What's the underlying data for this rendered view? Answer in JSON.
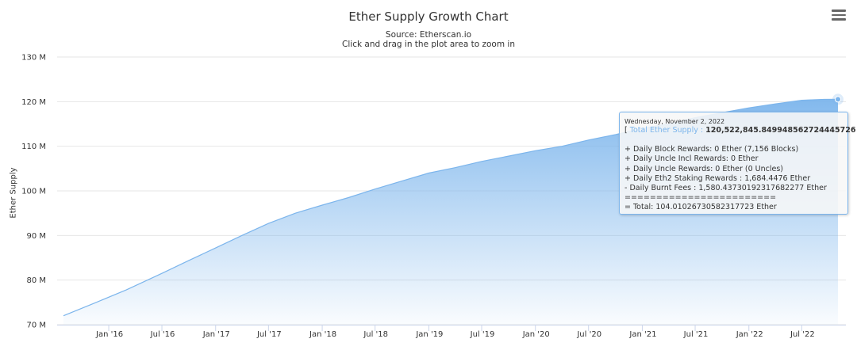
{
  "chart_data": {
    "type": "area",
    "title": "Ether Supply Growth Chart",
    "subtitle": "Source: Etherscan.io",
    "subtitle_hint": "Click and drag in the plot area to zoom in",
    "ylabel": "Ether Supply",
    "xlabel": "",
    "ylim": [
      70,
      130
    ],
    "y_ticks": [
      {
        "value": 70,
        "label": "70 M"
      },
      {
        "value": 80,
        "label": "80 M"
      },
      {
        "value": 90,
        "label": "90 M"
      },
      {
        "value": 100,
        "label": "100 M"
      },
      {
        "value": 110,
        "label": "110 M"
      },
      {
        "value": 120,
        "label": "120 M"
      },
      {
        "value": 130,
        "label": "130 M"
      }
    ],
    "x_range": [
      "2015-07-30",
      "2022-11-02"
    ],
    "x_ticks": [
      {
        "date": "2016-01-01",
        "label": "Jan '16"
      },
      {
        "date": "2016-07-01",
        "label": "Jul '16"
      },
      {
        "date": "2017-01-01",
        "label": "Jan '17"
      },
      {
        "date": "2017-07-01",
        "label": "Jul '17"
      },
      {
        "date": "2018-01-01",
        "label": "Jan '18"
      },
      {
        "date": "2018-07-01",
        "label": "Jul '18"
      },
      {
        "date": "2019-01-01",
        "label": "Jan '19"
      },
      {
        "date": "2019-07-01",
        "label": "Jul '19"
      },
      {
        "date": "2020-01-01",
        "label": "Jan '20"
      },
      {
        "date": "2020-07-01",
        "label": "Jul '20"
      },
      {
        "date": "2021-01-01",
        "label": "Jan '21"
      },
      {
        "date": "2021-07-01",
        "label": "Jul '21"
      },
      {
        "date": "2022-01-01",
        "label": "Jan '22"
      },
      {
        "date": "2022-07-01",
        "label": "Jul '22"
      }
    ],
    "grid": true,
    "legend": "none",
    "series": [
      {
        "points": [
          {
            "x": "2015-07-30",
            "y": 72.0
          },
          {
            "x": "2015-11-01",
            "y": 74.5
          },
          {
            "x": "2016-03-01",
            "y": 77.8
          },
          {
            "x": "2016-07-01",
            "y": 81.5
          },
          {
            "x": "2016-10-01",
            "y": 84.4
          },
          {
            "x": "2017-01-01",
            "y": 87.2
          },
          {
            "x": "2017-04-01",
            "y": 90.0
          },
          {
            "x": "2017-07-01",
            "y": 92.7
          },
          {
            "x": "2017-10-01",
            "y": 95.0
          },
          {
            "x": "2018-01-01",
            "y": 96.8
          },
          {
            "x": "2018-04-01",
            "y": 98.5
          },
          {
            "x": "2018-07-01",
            "y": 100.4
          },
          {
            "x": "2018-10-01",
            "y": 102.2
          },
          {
            "x": "2019-01-01",
            "y": 104.0
          },
          {
            "x": "2019-04-01",
            "y": 105.2
          },
          {
            "x": "2019-07-01",
            "y": 106.6
          },
          {
            "x": "2019-10-01",
            "y": 107.8
          },
          {
            "x": "2020-01-01",
            "y": 109.0
          },
          {
            "x": "2020-04-01",
            "y": 110.0
          },
          {
            "x": "2020-07-01",
            "y": 111.4
          },
          {
            "x": "2020-10-01",
            "y": 112.6
          },
          {
            "x": "2021-01-01",
            "y": 114.0
          },
          {
            "x": "2021-04-01",
            "y": 115.0
          },
          {
            "x": "2021-07-01",
            "y": 116.4
          },
          {
            "x": "2021-10-01",
            "y": 117.5
          },
          {
            "x": "2022-01-01",
            "y": 118.6
          },
          {
            "x": "2022-04-01",
            "y": 119.5
          },
          {
            "x": "2022-07-01",
            "y": 120.3
          },
          {
            "x": "2022-09-15",
            "y": 120.5
          },
          {
            "x": "2022-11-02",
            "y": 120.52
          }
        ]
      }
    ],
    "colors": {
      "line": "#7cb5ec",
      "fill_top": "#7cb5ec",
      "fill_bottom": "#ffffff",
      "grid": "#e6e6e6"
    },
    "tooltip": {
      "date": "Wednesday, November 2, 2022",
      "open_bracket": "[",
      "series_label": "Total Ether Supply",
      "sep": ":",
      "value": "120,522,845.849948562724445726",
      "close_bracket": "]",
      "lines": [
        "+ Daily Block Rewards: 0 Ether (7,156 Blocks)",
        "+ Daily Uncle Incl Rewards: 0 Ether",
        "+ Daily Uncle Rewards: 0 Ether (0 Uncles)",
        "+ Daily Eth2 Staking Rewards : 1,684.4476 Ether",
        "- Daily Burnt Fees : 1,580.43730192317682277 Ether",
        "========================",
        "= Total: 104.01026730582317723 Ether"
      ]
    }
  },
  "icons": {
    "menu": "hamburger-menu-icon"
  }
}
